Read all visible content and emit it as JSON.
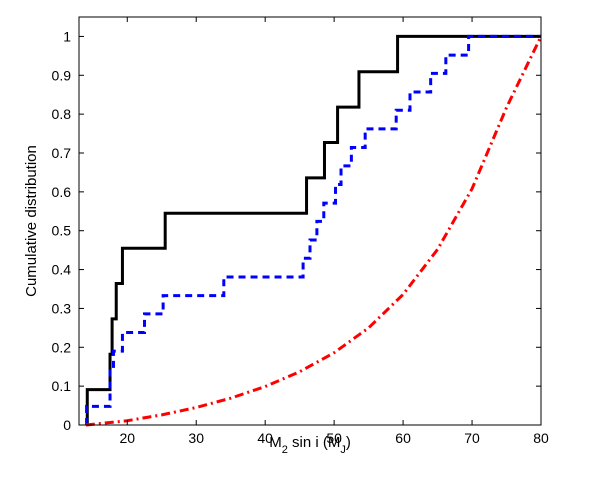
{
  "chart_data": {
    "type": "line",
    "title": "",
    "xlabel": {
      "main": "M",
      "sub": "2",
      "rest": " sin i  (M",
      "sub2": "J",
      "close": ")"
    },
    "ylabel": "Cumulative distribution",
    "xlim": [
      13,
      80
    ],
    "ylim": [
      0,
      1.05
    ],
    "x_ticks": [
      20,
      30,
      40,
      50,
      60,
      70,
      80
    ],
    "y_ticks": [
      0,
      0.1,
      0.2,
      0.3,
      0.4,
      0.5,
      0.6,
      0.7,
      0.8,
      0.9,
      1
    ],
    "x_tick_labels": [
      "20",
      "30",
      "40",
      "50",
      "60",
      "70",
      "80"
    ],
    "y_tick_labels": [
      "0",
      "0.1",
      "0.2",
      "0.3",
      "0.4",
      "0.5",
      "0.6",
      "0.7",
      "0.8",
      "0.9",
      "1"
    ],
    "grid": false,
    "legend": null,
    "series": [
      {
        "style": "solid",
        "color": "#000000",
        "kind": "step",
        "x": [
          14.2,
          17.5,
          17.8,
          18.4,
          19.3,
          25.5,
          46.0,
          48.6,
          50.5,
          53.6,
          59.2,
          80
        ],
        "y": [
          0.091,
          0.182,
          0.273,
          0.364,
          0.455,
          0.545,
          0.636,
          0.727,
          0.818,
          0.909,
          1.0,
          1.0
        ]
      },
      {
        "style": "dashed",
        "color": "#0000ff",
        "kind": "step",
        "x": [
          14.1,
          14.6,
          17.5,
          18.0,
          19.3,
          22.5,
          25.2,
          34.0,
          45.5,
          46.5,
          47.5,
          48.5,
          50.2,
          51.0,
          52.5,
          54.5,
          59.0,
          61.0,
          64.0,
          66.2,
          69.5,
          71.5,
          80
        ],
        "y": [
          0.048,
          0.048,
          0.143,
          0.19,
          0.238,
          0.286,
          0.333,
          0.381,
          0.429,
          0.476,
          0.524,
          0.571,
          0.619,
          0.667,
          0.714,
          0.762,
          0.81,
          0.857,
          0.905,
          0.952,
          1.0,
          1.0,
          1.0
        ]
      },
      {
        "style": "dash-dot",
        "color": "#ff0000",
        "kind": "curve",
        "x": [
          14,
          20,
          25,
          30,
          35,
          40,
          45,
          50,
          55,
          60,
          65,
          70,
          75,
          80
        ],
        "y": [
          0.0,
          0.011,
          0.026,
          0.045,
          0.069,
          0.099,
          0.137,
          0.186,
          0.25,
          0.336,
          0.452,
          0.608,
          0.817,
          1.0
        ]
      }
    ]
  }
}
